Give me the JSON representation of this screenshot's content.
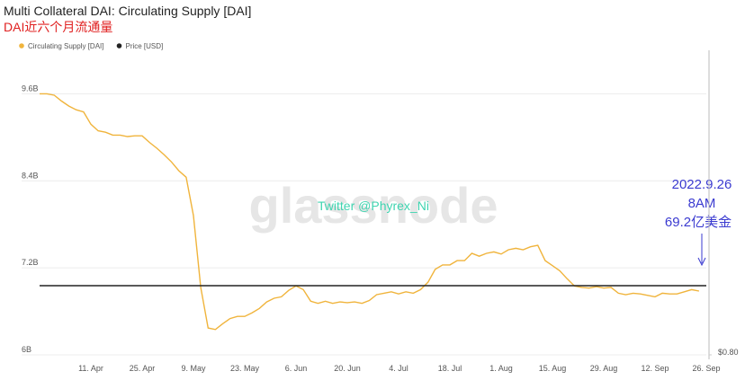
{
  "chart_data": {
    "type": "line",
    "title": "Multi Collateral DAI: Circulating Supply [DAI]",
    "subtitle": "DAI近六个月流通量",
    "watermark": "glassnode",
    "annotations": [
      "Twitter @Phyrex_Ni",
      "2022.9.26",
      "8AM",
      "69.2亿美金"
    ],
    "legend": "top-left",
    "grid": true,
    "categories": [
      null,
      null,
      null,
      null,
      null,
      null,
      null,
      "11. Apr",
      null,
      null,
      null,
      null,
      null,
      null,
      "25. Apr",
      null,
      null,
      null,
      null,
      null,
      null,
      "9. May",
      null,
      null,
      null,
      null,
      null,
      null,
      "23. May",
      null,
      null,
      null,
      null,
      null,
      null,
      "6. Jun",
      null,
      null,
      null,
      null,
      null,
      null,
      "20. Jun",
      null,
      null,
      null,
      null,
      null,
      null,
      "4. Jul",
      null,
      null,
      null,
      null,
      null,
      null,
      "18. Jul",
      null,
      null,
      null,
      null,
      null,
      null,
      "1. Aug",
      null,
      null,
      null,
      null,
      null,
      null,
      "15. Aug",
      null,
      null,
      null,
      null,
      null,
      null,
      "29. Aug",
      null,
      null,
      null,
      null,
      null,
      null,
      "12. Sep",
      null,
      null,
      null,
      null,
      null,
      null,
      "26. Sep"
    ],
    "series": [
      {
        "name": "Circulating Supply [DAI]",
        "color": "#f0b43c",
        "values": [
          9.6,
          9.6,
          9.58,
          9.5,
          9.43,
          9.38,
          9.35,
          9.18,
          9.09,
          9.07,
          9.03,
          9.03,
          9.01,
          9.02,
          9.02,
          8.93,
          8.85,
          8.76,
          8.66,
          8.54,
          8.45,
          7.92,
          6.93,
          6.37,
          6.35,
          6.43,
          6.5,
          6.53,
          6.53,
          6.58,
          6.64,
          6.73,
          6.78,
          6.8,
          6.89,
          6.95,
          6.9,
          6.74,
          6.71,
          6.74,
          6.71,
          6.73,
          6.72,
          6.73,
          6.71,
          6.75,
          6.83,
          6.85,
          6.87,
          6.84,
          6.87,
          6.85,
          6.9,
          7.0,
          7.18,
          7.24,
          7.24,
          7.3,
          7.3,
          7.4,
          7.36,
          7.4,
          7.42,
          7.39,
          7.45,
          7.47,
          7.45,
          7.49,
          7.51,
          7.3,
          7.23,
          7.16,
          7.05,
          6.95,
          6.93,
          6.92,
          6.94,
          6.92,
          6.93,
          6.85,
          6.83,
          6.85,
          6.84,
          6.82,
          6.8,
          6.85,
          6.84,
          6.84,
          6.87,
          6.9,
          6.88,
          null
        ]
      },
      {
        "name": "Price [USD]",
        "color": "#222222",
        "axis": "y2",
        "values": [
          1,
          1,
          1,
          1,
          1,
          1,
          1,
          1,
          1,
          1,
          1,
          1,
          1,
          1,
          1,
          1,
          1,
          1,
          1,
          1,
          1,
          1,
          1,
          1,
          1,
          1,
          1,
          1,
          1,
          1,
          1,
          1,
          1,
          1,
          1,
          1,
          1,
          1,
          1,
          1,
          1,
          1,
          1,
          1,
          1,
          1,
          1,
          1,
          1,
          1,
          1,
          1,
          1,
          1,
          1,
          1,
          1,
          1,
          1,
          1,
          1,
          1,
          1,
          1,
          1,
          1,
          1,
          1,
          1,
          1,
          1,
          1,
          1,
          1,
          1,
          1,
          1,
          1,
          1,
          1,
          1,
          1,
          1,
          1,
          1,
          1,
          1,
          1,
          1,
          1,
          1,
          1
        ]
      }
    ],
    "ylim": [
      6,
      10.2
    ],
    "yticks": [
      {
        "value": 6,
        "label": "6B"
      },
      {
        "value": 7.2,
        "label": "7.2B"
      },
      {
        "value": 8.4,
        "label": "8.4B"
      },
      {
        "value": 9.6,
        "label": "9.6B"
      }
    ],
    "y2lim": [
      0.8,
      1.68
    ],
    "y2ticks": [
      {
        "value": 0.8,
        "label": "$0.80"
      }
    ]
  }
}
